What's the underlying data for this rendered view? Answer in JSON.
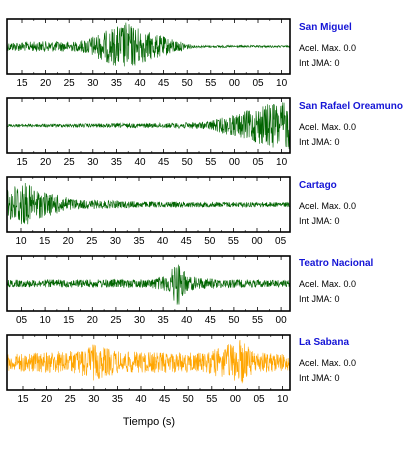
{
  "colors": {
    "trace": "#006400",
    "highlight": "#ffa500",
    "station_label": "#1515d6",
    "frame": "#000000"
  },
  "x_axis_label": "Tiempo (s)",
  "chart_data": [
    {
      "type": "line",
      "station": "San Miguel",
      "acel_label": "Acel. Max.",
      "acel_value": "0.0",
      "int_label": "Int JMA:",
      "int_value": "0",
      "color": "#006400",
      "x_tick_labels": [
        "15",
        "20",
        "25",
        "30",
        "35",
        "40",
        "45",
        "50",
        "55",
        "00",
        "05",
        "10"
      ],
      "amplitude_envelope": [
        {
          "t": 0.0,
          "a": 0.18
        },
        {
          "t": 0.15,
          "a": 0.22
        },
        {
          "t": 0.25,
          "a": 0.2
        },
        {
          "t": 0.33,
          "a": 0.55
        },
        {
          "t": 0.42,
          "a": 1.0
        },
        {
          "t": 0.5,
          "a": 0.6
        },
        {
          "t": 0.6,
          "a": 0.25
        },
        {
          "t": 0.66,
          "a": 0.05
        },
        {
          "t": 1.0,
          "a": 0.04
        }
      ]
    },
    {
      "type": "line",
      "station": "San Rafael Oreamuno",
      "acel_label": "Acel. Max.",
      "acel_value": "0.0",
      "int_label": "Int JMA:",
      "int_value": "0",
      "color": "#006400",
      "x_tick_labels": [
        "15",
        "20",
        "25",
        "30",
        "35",
        "40",
        "45",
        "50",
        "55",
        "00",
        "05",
        "10"
      ],
      "amplitude_envelope": [
        {
          "t": 0.0,
          "a": 0.06
        },
        {
          "t": 0.55,
          "a": 0.1
        },
        {
          "t": 0.7,
          "a": 0.15
        },
        {
          "t": 0.82,
          "a": 0.5
        },
        {
          "t": 0.92,
          "a": 0.9
        },
        {
          "t": 1.0,
          "a": 1.0
        }
      ]
    },
    {
      "type": "line",
      "station": "Cartago",
      "acel_label": "Acel. Max.",
      "acel_value": "0.0",
      "int_label": "Int JMA:",
      "int_value": "0",
      "color": "#006400",
      "x_tick_labels": [
        "10",
        "15",
        "20",
        "25",
        "30",
        "35",
        "40",
        "45",
        "50",
        "55",
        "00",
        "05"
      ],
      "amplitude_envelope": [
        {
          "t": 0.0,
          "a": 0.6
        },
        {
          "t": 0.05,
          "a": 1.0
        },
        {
          "t": 0.12,
          "a": 0.55
        },
        {
          "t": 0.25,
          "a": 0.2
        },
        {
          "t": 0.5,
          "a": 0.12
        },
        {
          "t": 1.0,
          "a": 0.1
        }
      ]
    },
    {
      "type": "line",
      "station": "Teatro Nacional",
      "acel_label": "Acel. Max.",
      "acel_value": "0.0",
      "int_label": "Int JMA:",
      "int_value": "0",
      "color": "#006400",
      "x_tick_labels": [
        "05",
        "10",
        "15",
        "20",
        "25",
        "30",
        "35",
        "40",
        "45",
        "50",
        "55",
        "00"
      ],
      "amplitude_envelope": [
        {
          "t": 0.0,
          "a": 0.15
        },
        {
          "t": 0.5,
          "a": 0.18
        },
        {
          "t": 0.57,
          "a": 0.35
        },
        {
          "t": 0.6,
          "a": 1.0
        },
        {
          "t": 0.64,
          "a": 0.3
        },
        {
          "t": 0.75,
          "a": 0.18
        },
        {
          "t": 1.0,
          "a": 0.14
        }
      ]
    },
    {
      "type": "line",
      "station": "La Sabana",
      "acel_label": "Acel. Max.",
      "acel_value": "0.0",
      "int_label": "Int JMA:",
      "int_value": "0",
      "color": "#ffa500",
      "x_tick_labels": [
        "15",
        "20",
        "25",
        "30",
        "35",
        "40",
        "45",
        "50",
        "55",
        "00",
        "05",
        "10"
      ],
      "amplitude_envelope": [
        {
          "t": 0.0,
          "a": 0.35
        },
        {
          "t": 0.25,
          "a": 0.5
        },
        {
          "t": 0.3,
          "a": 0.75
        },
        {
          "t": 0.4,
          "a": 0.45
        },
        {
          "t": 0.7,
          "a": 0.4
        },
        {
          "t": 0.83,
          "a": 0.95
        },
        {
          "t": 0.87,
          "a": 0.45
        },
        {
          "t": 1.0,
          "a": 0.35
        }
      ]
    }
  ]
}
